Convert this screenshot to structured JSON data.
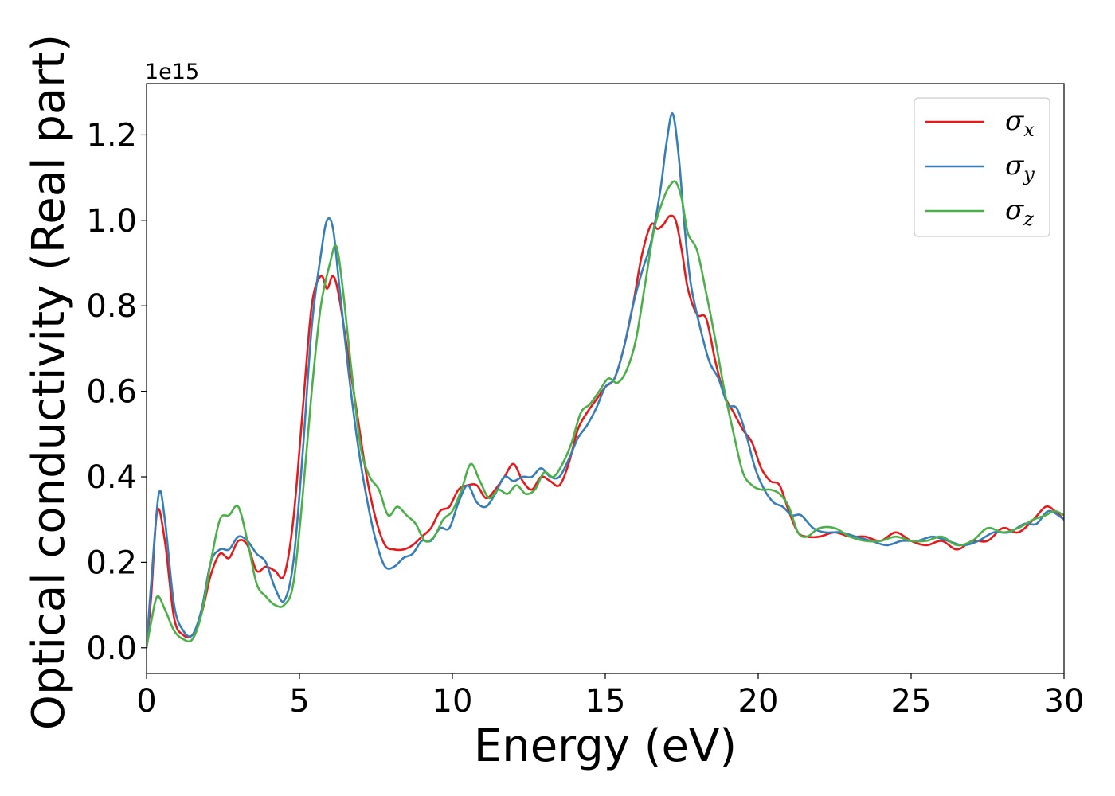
{
  "chart_data": {
    "type": "line",
    "xlabel": "Energy (eV)",
    "ylabel": "Optical conductivity (Real part)",
    "y_offset_label": "1e15",
    "xlim": [
      0,
      30
    ],
    "ylim": [
      -0.06,
      1.32
    ],
    "xticks": [
      0,
      5,
      10,
      15,
      20,
      25,
      30
    ],
    "xtick_labels": [
      "0",
      "5",
      "10",
      "15",
      "20",
      "25",
      "30"
    ],
    "yticks": [
      0.0,
      0.2,
      0.4,
      0.6,
      0.8,
      1.0,
      1.2
    ],
    "ytick_labels": [
      "0.0",
      "0.2",
      "0.4",
      "0.6",
      "0.8",
      "1.0",
      "1.2"
    ],
    "grid": false,
    "legend": {
      "placement": "top-right"
    },
    "series": [
      {
        "name": "σx",
        "symbol": "σ",
        "sub": "x",
        "color": "#e41a1c",
        "x": [
          0,
          0.15,
          0.35,
          0.6,
          0.9,
          1.2,
          1.5,
          1.8,
          2.1,
          2.4,
          2.7,
          3.0,
          3.3,
          3.6,
          3.9,
          4.2,
          4.5,
          4.8,
          5.1,
          5.4,
          5.7,
          5.9,
          6.1,
          6.3,
          6.6,
          6.9,
          7.2,
          7.5,
          7.8,
          8.1,
          8.4,
          8.7,
          9.0,
          9.3,
          9.6,
          9.9,
          10.2,
          10.5,
          10.8,
          11.1,
          11.4,
          11.7,
          12.0,
          12.3,
          12.6,
          12.9,
          13.2,
          13.5,
          13.8,
          14.1,
          14.4,
          14.7,
          15.0,
          15.3,
          15.6,
          15.9,
          16.2,
          16.5,
          16.7,
          16.9,
          17.1,
          17.3,
          17.5,
          17.7,
          18.0,
          18.3,
          18.6,
          18.9,
          19.2,
          19.5,
          19.8,
          20.1,
          20.4,
          20.7,
          21.0,
          21.3,
          21.6,
          22.0,
          22.5,
          23.0,
          23.5,
          24.0,
          24.5,
          25.0,
          25.5,
          26.0,
          26.5,
          27.0,
          27.5,
          28.0,
          28.5,
          29.0,
          29.4,
          29.7,
          30.0
        ],
        "y": [
          0.0,
          0.12,
          0.32,
          0.25,
          0.07,
          0.03,
          0.03,
          0.08,
          0.17,
          0.22,
          0.21,
          0.25,
          0.24,
          0.18,
          0.19,
          0.18,
          0.17,
          0.3,
          0.55,
          0.8,
          0.87,
          0.84,
          0.87,
          0.82,
          0.68,
          0.54,
          0.4,
          0.3,
          0.24,
          0.23,
          0.23,
          0.24,
          0.26,
          0.28,
          0.32,
          0.33,
          0.37,
          0.38,
          0.38,
          0.35,
          0.37,
          0.4,
          0.43,
          0.39,
          0.37,
          0.4,
          0.39,
          0.38,
          0.43,
          0.51,
          0.55,
          0.58,
          0.61,
          0.63,
          0.7,
          0.8,
          0.92,
          0.99,
          0.98,
          0.99,
          1.01,
          1.0,
          0.93,
          0.84,
          0.78,
          0.77,
          0.67,
          0.59,
          0.55,
          0.51,
          0.48,
          0.42,
          0.39,
          0.38,
          0.32,
          0.27,
          0.26,
          0.26,
          0.27,
          0.26,
          0.26,
          0.25,
          0.27,
          0.25,
          0.24,
          0.25,
          0.23,
          0.25,
          0.25,
          0.28,
          0.27,
          0.3,
          0.33,
          0.32,
          0.3
        ]
      },
      {
        "name": "σy",
        "symbol": "σ",
        "sub": "y",
        "color": "#377eb8",
        "x": [
          0,
          0.15,
          0.4,
          0.6,
          0.9,
          1.2,
          1.5,
          1.8,
          2.1,
          2.4,
          2.7,
          3.0,
          3.3,
          3.6,
          3.9,
          4.2,
          4.5,
          4.8,
          5.1,
          5.4,
          5.7,
          5.9,
          6.1,
          6.3,
          6.6,
          6.9,
          7.2,
          7.5,
          7.8,
          8.1,
          8.4,
          8.7,
          9.0,
          9.3,
          9.6,
          9.9,
          10.2,
          10.5,
          10.8,
          11.1,
          11.4,
          11.7,
          12.0,
          12.3,
          12.6,
          12.9,
          13.2,
          13.5,
          13.8,
          14.1,
          14.4,
          14.7,
          15.0,
          15.3,
          15.6,
          15.9,
          16.2,
          16.5,
          16.8,
          17.0,
          17.2,
          17.4,
          17.6,
          17.8,
          18.1,
          18.4,
          18.7,
          19.0,
          19.3,
          19.6,
          19.9,
          20.2,
          20.5,
          20.8,
          21.1,
          21.4,
          21.8,
          22.2,
          22.7,
          23.2,
          23.7,
          24.2,
          24.7,
          25.2,
          25.7,
          26.2,
          26.7,
          27.2,
          27.7,
          28.2,
          28.7,
          29.1,
          29.5,
          30.0
        ],
        "y": [
          0.0,
          0.15,
          0.36,
          0.3,
          0.1,
          0.04,
          0.03,
          0.09,
          0.2,
          0.23,
          0.23,
          0.26,
          0.25,
          0.22,
          0.2,
          0.14,
          0.11,
          0.2,
          0.45,
          0.75,
          0.92,
          1.0,
          0.98,
          0.85,
          0.65,
          0.48,
          0.35,
          0.25,
          0.19,
          0.19,
          0.21,
          0.22,
          0.25,
          0.25,
          0.28,
          0.28,
          0.34,
          0.38,
          0.34,
          0.33,
          0.36,
          0.4,
          0.39,
          0.4,
          0.4,
          0.42,
          0.4,
          0.4,
          0.44,
          0.49,
          0.52,
          0.56,
          0.61,
          0.63,
          0.7,
          0.8,
          0.88,
          0.95,
          1.07,
          1.18,
          1.25,
          1.15,
          0.98,
          0.85,
          0.75,
          0.67,
          0.63,
          0.57,
          0.56,
          0.5,
          0.42,
          0.37,
          0.34,
          0.33,
          0.31,
          0.31,
          0.28,
          0.27,
          0.27,
          0.26,
          0.25,
          0.24,
          0.25,
          0.25,
          0.26,
          0.25,
          0.24,
          0.25,
          0.27,
          0.27,
          0.29,
          0.29,
          0.32,
          0.3
        ]
      },
      {
        "name": "σz",
        "symbol": "σ",
        "sub": "z",
        "color": "#4daf4a",
        "x": [
          0,
          0.15,
          0.35,
          0.6,
          0.9,
          1.2,
          1.5,
          1.8,
          2.1,
          2.4,
          2.7,
          3.0,
          3.3,
          3.6,
          3.9,
          4.2,
          4.5,
          4.8,
          5.1,
          5.4,
          5.7,
          6.0,
          6.2,
          6.4,
          6.7,
          7.0,
          7.3,
          7.6,
          7.9,
          8.2,
          8.5,
          8.8,
          9.1,
          9.4,
          9.7,
          10.0,
          10.3,
          10.6,
          10.9,
          11.2,
          11.5,
          11.8,
          12.1,
          12.4,
          12.7,
          13.0,
          13.3,
          13.6,
          13.9,
          14.2,
          14.5,
          14.8,
          15.1,
          15.4,
          15.7,
          16.0,
          16.3,
          16.6,
          16.9,
          17.1,
          17.3,
          17.5,
          17.7,
          18.0,
          18.3,
          18.6,
          18.9,
          19.2,
          19.5,
          19.8,
          20.1,
          20.4,
          20.7,
          21.0,
          21.3,
          21.6,
          22.0,
          22.5,
          23.0,
          23.5,
          24.0,
          24.5,
          25.0,
          25.5,
          26.0,
          26.5,
          27.0,
          27.5,
          28.0,
          28.5,
          29.0,
          29.4,
          29.7,
          30.0
        ],
        "y": [
          0.0,
          0.06,
          0.12,
          0.09,
          0.04,
          0.02,
          0.02,
          0.08,
          0.2,
          0.3,
          0.31,
          0.33,
          0.25,
          0.15,
          0.12,
          0.1,
          0.1,
          0.15,
          0.35,
          0.6,
          0.8,
          0.9,
          0.94,
          0.85,
          0.65,
          0.47,
          0.4,
          0.37,
          0.31,
          0.33,
          0.31,
          0.29,
          0.25,
          0.26,
          0.3,
          0.32,
          0.37,
          0.43,
          0.39,
          0.35,
          0.37,
          0.36,
          0.38,
          0.36,
          0.37,
          0.41,
          0.4,
          0.43,
          0.48,
          0.55,
          0.57,
          0.6,
          0.63,
          0.62,
          0.65,
          0.72,
          0.85,
          0.98,
          1.05,
          1.08,
          1.09,
          1.05,
          0.97,
          0.93,
          0.83,
          0.72,
          0.6,
          0.5,
          0.41,
          0.38,
          0.37,
          0.37,
          0.36,
          0.33,
          0.27,
          0.26,
          0.28,
          0.28,
          0.26,
          0.25,
          0.25,
          0.26,
          0.25,
          0.25,
          0.26,
          0.24,
          0.25,
          0.28,
          0.27,
          0.28,
          0.3,
          0.31,
          0.32,
          0.31
        ]
      }
    ]
  }
}
